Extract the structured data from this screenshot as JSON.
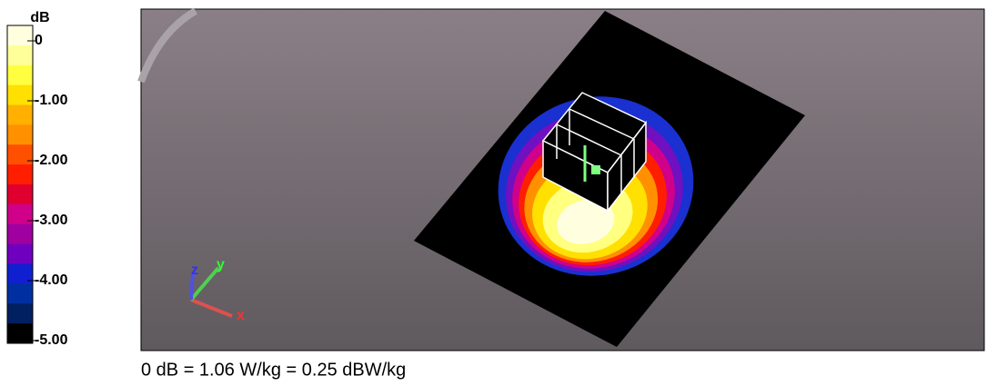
{
  "colorbar": {
    "unit": "dB",
    "ticks": [
      "0",
      "-1.00",
      "-2.00",
      "-3.00",
      "-4.00",
      "-5.00"
    ],
    "colors": [
      "#ffffe0",
      "#ffff99",
      "#ffff40",
      "#ffe000",
      "#ffb000",
      "#ff9000",
      "#ff5000",
      "#ff1e00",
      "#e00030",
      "#d0008a",
      "#a000a0",
      "#7000c0",
      "#1020d0",
      "#0030a0",
      "#002060",
      "#000000"
    ]
  },
  "axes": {
    "x": "x",
    "y": "y",
    "z": "z"
  },
  "caption": "0 dB = 1.06 W/kg = 0.25 dBW/kg"
}
